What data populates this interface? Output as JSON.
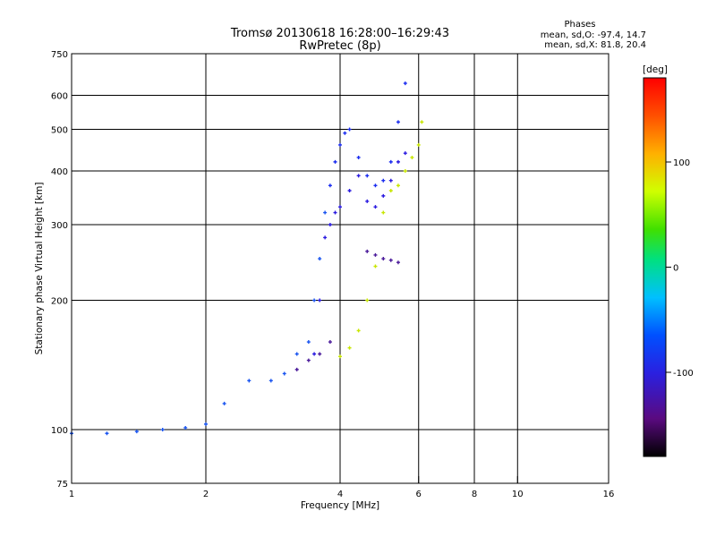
{
  "chart_data": {
    "type": "scatter",
    "title": "Tromsø 20130618 16:28:00–16:29:43",
    "subtitle": "RwPretec (8p)",
    "xlabel": "Frequency [MHz]",
    "ylabel": "Stationary phase Virtual Height [km]",
    "x_scale": "log",
    "y_scale": "log",
    "xlim": [
      1,
      16
    ],
    "ylim": [
      75,
      750
    ],
    "x_ticks": [
      1,
      2,
      4,
      6,
      8,
      10,
      16
    ],
    "x_tick_labels": [
      "1",
      "2",
      "4",
      "6",
      "8",
      "10",
      "16"
    ],
    "y_ticks": [
      75,
      100,
      200,
      300,
      400,
      500,
      600,
      750
    ],
    "y_tick_labels": [
      "75",
      "100",
      "200",
      "300",
      "400",
      "500",
      "600",
      "750"
    ],
    "grid": true,
    "stats": {
      "heading": "Phases",
      "line1": "mean, sd,O: -97.4, 14.7",
      "line2": "mean, sd,X:  81.8, 20.4"
    },
    "colorbar": {
      "label": "[deg]",
      "range": [
        -180,
        180
      ],
      "ticks": [
        100,
        0,
        -100
      ],
      "tick_labels": [
        "100",
        "0",
        "-100"
      ]
    },
    "series": [
      {
        "name": "",
        "color": "#1a55f0",
        "x": [
          1.0,
          1.2,
          1.4,
          1.6,
          1.8,
          2.0,
          2.2,
          2.5,
          2.8,
          3.0,
          3.2,
          3.4,
          3.5,
          3.6,
          3.7
        ],
        "y": [
          98,
          98,
          99,
          100,
          101,
          103,
          115,
          130,
          130,
          135,
          150,
          160,
          200,
          250,
          320
        ]
      },
      {
        "name": "",
        "color": "#1a2cf0",
        "x": [
          3.8,
          3.9,
          4.0,
          4.1,
          4.2,
          4.4,
          4.6,
          4.8,
          5.0,
          5.2,
          5.4,
          5.6
        ],
        "y": [
          370,
          420,
          460,
          490,
          500,
          430,
          390,
          370,
          380,
          420,
          520,
          640
        ]
      },
      {
        "name": "",
        "color": "#2a1ae0",
        "x": [
          3.5,
          3.6,
          3.7,
          3.8,
          3.9,
          4.0,
          4.2,
          4.4,
          4.6,
          4.8,
          5.0,
          5.2,
          5.4,
          5.6
        ],
        "y": [
          150,
          200,
          280,
          300,
          320,
          330,
          360,
          390,
          340,
          330,
          350,
          380,
          420,
          440
        ]
      },
      {
        "name": "",
        "color": "#c8e600",
        "x": [
          4.0,
          4.2,
          4.4,
          4.6,
          4.8,
          5.0,
          5.2,
          5.4,
          5.6,
          5.8,
          6.0,
          6.1
        ],
        "y": [
          148,
          155,
          170,
          200,
          240,
          320,
          360,
          370,
          400,
          430,
          460,
          520
        ]
      },
      {
        "name": "",
        "color": "#4a1a9a",
        "x": [
          3.2,
          3.4,
          3.6,
          3.8,
          4.6,
          4.8,
          5.0,
          5.2,
          5.4
        ],
        "y": [
          138,
          145,
          150,
          160,
          260,
          255,
          250,
          248,
          245
        ]
      }
    ]
  }
}
